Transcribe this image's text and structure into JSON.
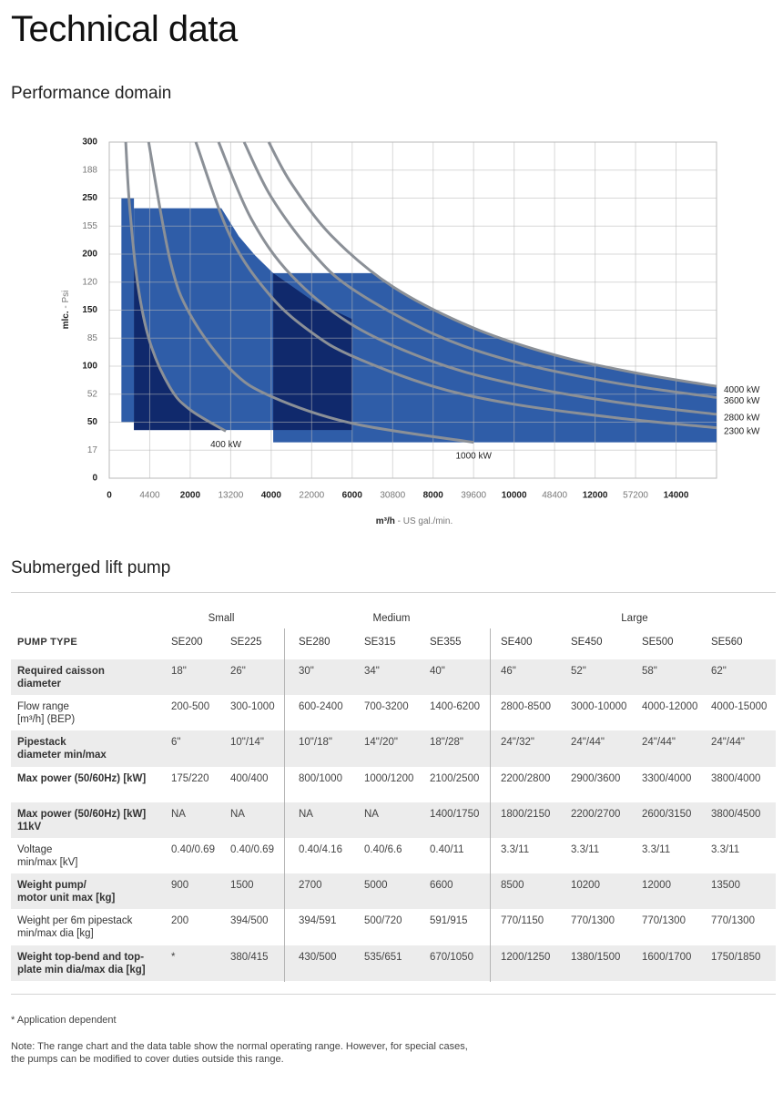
{
  "header": {
    "title": "Technical data"
  },
  "chart_data": {
    "type": "area",
    "title": "Performance domain",
    "x_label": "m³/h",
    "x_label_secondary": "- US gal./min.",
    "y_label": "mlc.",
    "y_label_secondary": "- Psi",
    "xlim": [
      0,
      15000
    ],
    "ylim": [
      0,
      300
    ],
    "xticks": [
      0,
      2000,
      4000,
      6000,
      8000,
      10000,
      12000,
      14000
    ],
    "gpm_ticks": [
      {
        "value": 1000,
        "label": "4400"
      },
      {
        "value": 3000,
        "label": "13200"
      },
      {
        "value": 5000,
        "label": "22000"
      },
      {
        "value": 7000,
        "label": "30800"
      },
      {
        "value": 9000,
        "label": "39600"
      },
      {
        "value": 11000,
        "label": "48400"
      },
      {
        "value": 13000,
        "label": "57200"
      }
    ],
    "yticks": [
      0,
      50,
      100,
      150,
      200,
      250,
      300
    ],
    "psi_ticks": [
      {
        "value": 25,
        "label": "17"
      },
      {
        "value": 75,
        "label": "52"
      },
      {
        "value": 125,
        "label": "85"
      },
      {
        "value": 175,
        "label": "120"
      },
      {
        "value": 225,
        "label": "155"
      },
      {
        "value": 275,
        "label": "188"
      }
    ],
    "grid": true,
    "regions": [
      {
        "color": "#2f5da8",
        "x": [
          300,
          300,
          610,
          610
        ],
        "values": [
          50,
          250,
          250,
          50
        ]
      },
      {
        "color": "#2f5da8",
        "x": [
          610,
          610,
          2770,
          3200,
          3600,
          4050,
          4050
        ],
        "values": [
          43,
          241,
          241,
          216,
          199,
          183,
          43
        ]
      },
      {
        "color": "#2f5da8",
        "x": [
          4050,
          4050,
          6500,
          7000,
          8000,
          9000,
          10000,
          11000,
          12000,
          13000,
          14000,
          15000,
          15000
        ],
        "values": [
          32,
          183,
          183,
          171,
          150,
          134,
          121,
          110,
          102,
          94,
          88,
          82,
          32
        ]
      },
      {
        "color": "#10296c",
        "x": [
          610,
          610,
          700,
          1000,
          1500,
          2000,
          2840
        ],
        "values": [
          43,
          200,
          174,
          122,
          81,
          61,
          43
        ]
      },
      {
        "color": "#10296c",
        "x": [
          4050,
          4050,
          5000,
          6000,
          6000
        ],
        "values": [
          43,
          183,
          159,
          142,
          43
        ]
      }
    ],
    "curve_color": "#8b9097",
    "curves": [
      {
        "name": "400 kW",
        "label_position": "below",
        "x": [
          407,
          500,
          700,
          1000,
          1500,
          2000,
          2880
        ],
        "values": [
          300,
          244,
          174,
          122,
          81,
          61,
          42
        ]
      },
      {
        "name": "1000 kW",
        "label_position": "below",
        "x": [
          973,
          1500,
          2000,
          3000,
          4000,
          6000,
          9000
        ],
        "values": [
          300,
          195,
          146,
          97,
          73,
          49,
          32
        ]
      },
      {
        "name": "2300 kW",
        "label_position": "right",
        "x": [
          2138,
          3000,
          4000,
          5000,
          6000,
          8000,
          10000,
          12500,
          15000
        ],
        "values": [
          300,
          215,
          162,
          130,
          109,
          82,
          66,
          54,
          45
        ]
      },
      {
        "name": "2800 kW",
        "label_position": "right",
        "x": [
          2701,
          3500,
          4500,
          6000,
          8000,
          10000,
          12500,
          15000
        ],
        "values": [
          300,
          232,
          181,
          137,
          104,
          84,
          68,
          57
        ]
      },
      {
        "name": "3600 kW",
        "label_position": "right",
        "x": [
          3331,
          4000,
          5000,
          6000,
          8000,
          10000,
          12500,
          15000
        ],
        "values": [
          300,
          251,
          202,
          169,
          129,
          104,
          85,
          72
        ]
      },
      {
        "name": "4000 kW",
        "label_position": "right",
        "x": [
          3939,
          4500,
          5500,
          7000,
          9000,
          11000,
          13000,
          15000
        ],
        "values": [
          300,
          263,
          216,
          171,
          134,
          110,
          94,
          82
        ]
      }
    ]
  },
  "table": {
    "title": "Submerged lift pump",
    "header": "PUMP TYPE",
    "groups": [
      {
        "label": "Small",
        "columns": [
          "SE200",
          "SE225"
        ]
      },
      {
        "label": "Medium",
        "columns": [
          "SE280",
          "SE315",
          "SE355"
        ]
      },
      {
        "label": "Large",
        "columns": [
          "SE400",
          "SE450",
          "SE500",
          "SE560"
        ]
      }
    ],
    "rows": [
      {
        "label_lines": [
          "Required caisson",
          "diameter"
        ],
        "bold": true,
        "cells": [
          "18\"",
          "26\"",
          "30\"",
          "34\"",
          "40\"",
          "46\"",
          "52\"",
          "58\"",
          "62\""
        ]
      },
      {
        "label_lines": [
          "Flow range",
          "[m³/h] (BEP)"
        ],
        "bold": false,
        "cells": [
          "200-500",
          "300-1000",
          "600-2400",
          "700-3200",
          "1400-6200",
          "2800-8500",
          "3000-10000",
          "4000-12000",
          "4000-15000"
        ]
      },
      {
        "label_lines": [
          "Pipestack",
          "diameter min/max"
        ],
        "bold": true,
        "cells": [
          "6\"",
          "10\"/14\"",
          "10\"/18\"",
          "14\"/20\"",
          "18\"/28\"",
          "24\"/32\"",
          "24\"/44\"",
          "24\"/44\"",
          "24\"/44\""
        ]
      },
      {
        "label_lines": [
          "Max power (50/60Hz) [kW]"
        ],
        "bold": true,
        "cells": [
          "175/220",
          "400/400",
          "800/1000",
          "1000/1200",
          "2100/2500",
          "2200/2800",
          "2900/3600",
          "3300/4000",
          "3800/4000"
        ]
      },
      {
        "label_lines": [
          "Max power (50/60Hz) [kW]",
          "11kV"
        ],
        "bold": true,
        "cells": [
          "NA",
          "NA",
          "NA",
          "NA",
          "1400/1750",
          "1800/2150",
          "2200/2700",
          "2600/3150",
          "3800/4500"
        ]
      },
      {
        "label_lines": [
          "Voltage",
          "min/max [kV]"
        ],
        "bold": false,
        "cells": [
          "0.40/0.69",
          "0.40/0.69",
          "0.40/4.16",
          "0.40/6.6",
          "0.40/11",
          "3.3/11",
          "3.3/11",
          "3.3/11",
          "3.3/11"
        ]
      },
      {
        "label_lines": [
          "Weight pump/",
          "motor unit max [kg]"
        ],
        "bold": true,
        "cells": [
          "900",
          "1500",
          "2700",
          "5000",
          "6600",
          "8500",
          "10200",
          "12000",
          "13500"
        ]
      },
      {
        "label_lines": [
          "Weight per 6m pipestack",
          "min/max dia [kg]"
        ],
        "bold": false,
        "cells": [
          "200",
          "394/500",
          "394/591",
          "500/720",
          "591/915",
          "770/1150",
          "770/1300",
          "770/1300",
          "770/1300"
        ]
      },
      {
        "label_lines": [
          "Weight top-bend and top-",
          "plate min dia/max dia [kg]"
        ],
        "bold": true,
        "cells": [
          "*",
          "380/415",
          "430/500",
          "535/651",
          "670/1050",
          "1200/1250",
          "1380/1500",
          "1600/1700",
          "1750/1850"
        ]
      }
    ]
  },
  "footnotes": [
    "* Application dependent",
    "Note: The range chart and the data table show the normal operating range. However, for special cases,",
    "the pumps can be modified to cover duties outside this range."
  ]
}
